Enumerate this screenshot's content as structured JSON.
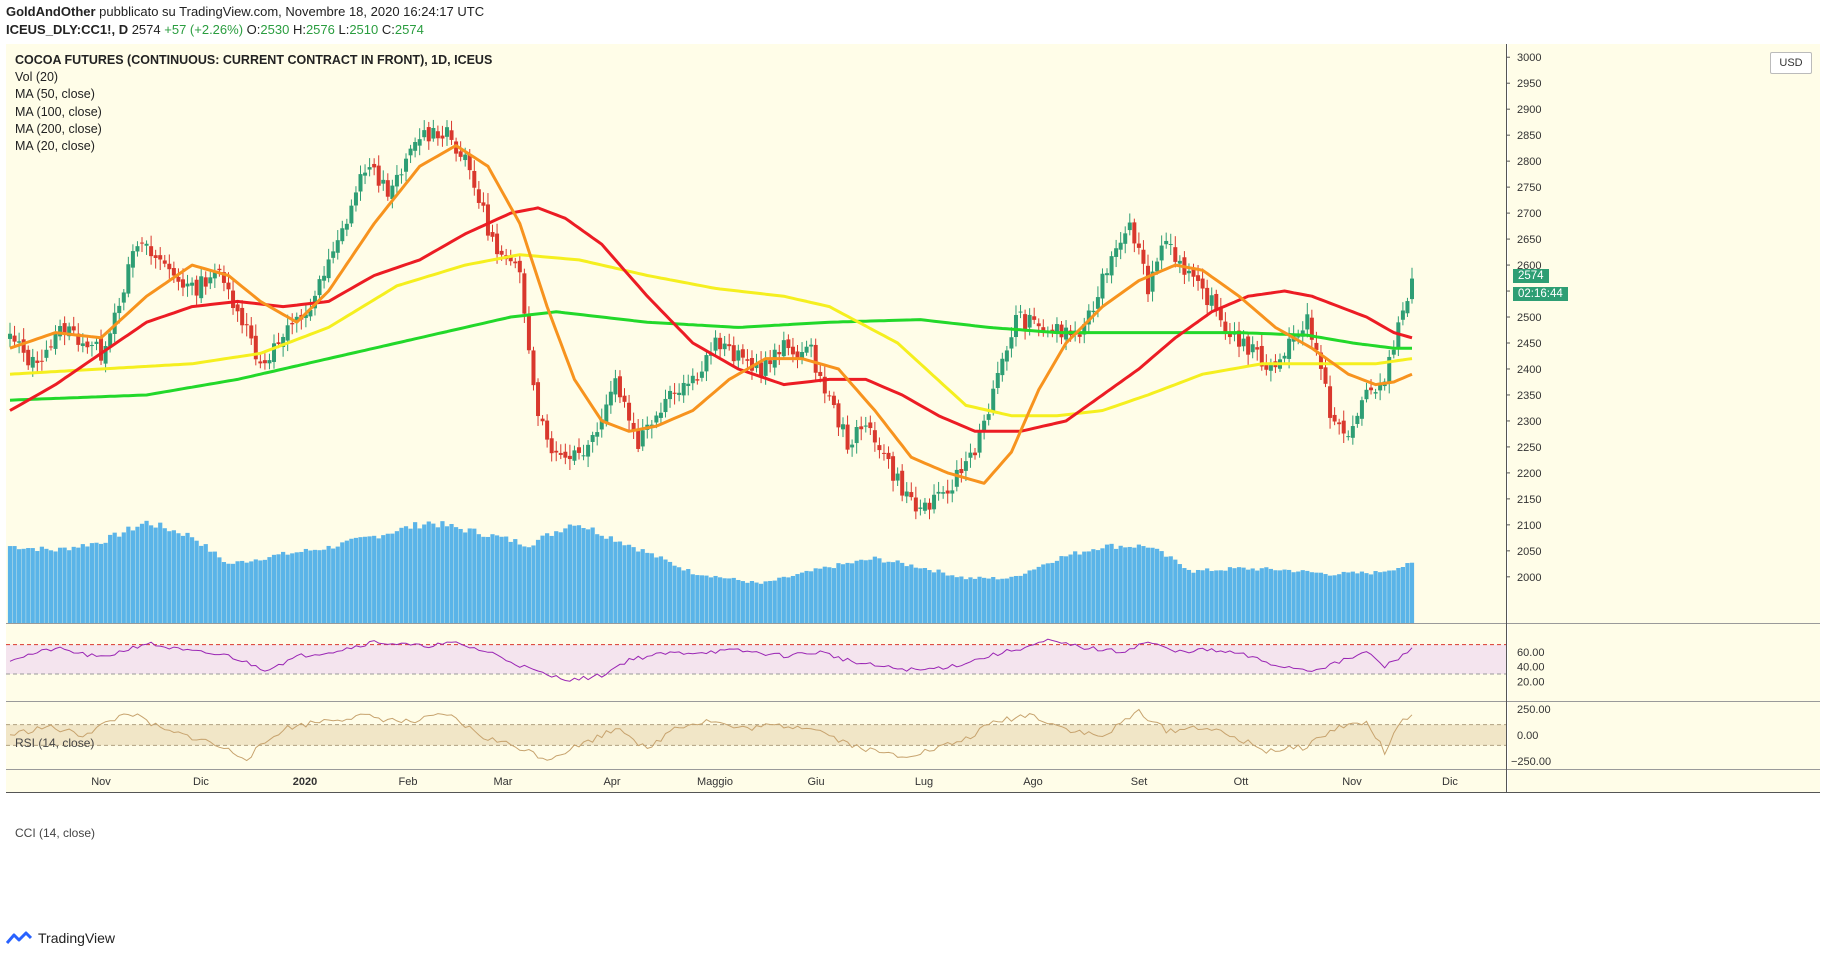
{
  "header": {
    "author": "GoldAndOther",
    "published_text": "pubblicato su TradingView.com, Novembre 18, 2020 16:24:17 UTC",
    "symbol": "ICEUS_DLY:CC1!, D",
    "last": "2574",
    "change": "+57 (+2.26%)",
    "open_label": "O:",
    "open": "2530",
    "high_label": "H:",
    "high": "2576",
    "low_label": "L:",
    "low": "2510",
    "close_label": "C:",
    "close": "2574"
  },
  "legend": {
    "title": "COCOA FUTURES (CONTINUOUS: CURRENT CONTRACT IN FRONT), 1D, ICEUS",
    "items": [
      "Vol (20)",
      "MA (50, close)",
      "MA (100, close)",
      "MA (200, close)",
      "MA (20, close)"
    ]
  },
  "rsi_label": "RSI (14, close)",
  "cci_label": "CCI (14, close)",
  "currency": "USD",
  "price_badge": "2574",
  "timer_badge": "02:16:44",
  "footer_brand": "TradingView",
  "colors": {
    "background": "#fffde8",
    "up": "#2e9e74",
    "down": "#d9382d",
    "volume": "#5ab4e8",
    "ma50": "#ec1c24",
    "ma100": "#f5ef1f",
    "ma200": "#22d82a",
    "ma20": "#f7931e",
    "rsi": "#9a25b4",
    "rsi_band": "#f4e4ee",
    "cci": "#c7a36e",
    "cci_band": "#f1e6c7"
  },
  "chart_data": {
    "type": "candlestick",
    "y_ticks": [
      2000,
      2050,
      2100,
      2150,
      2200,
      2250,
      2300,
      2350,
      2400,
      2450,
      2500,
      2550,
      2600,
      2650,
      2700,
      2750,
      2800,
      2850,
      2900,
      2950,
      3000
    ],
    "ylim": [
      1950,
      3070
    ],
    "x_labels": [
      "Nov",
      "Dic",
      "2020",
      "Feb",
      "Mar",
      "Apr",
      "Maggio",
      "Giu",
      "Lug",
      "Ago",
      "Set",
      "Ott",
      "Nov",
      "Dic"
    ],
    "close_anchors": [
      [
        0,
        2460
      ],
      [
        5,
        2410
      ],
      [
        12,
        2480
      ],
      [
        20,
        2430
      ],
      [
        28,
        2640
      ],
      [
        34,
        2600
      ],
      [
        40,
        2550
      ],
      [
        45,
        2590
      ],
      [
        50,
        2520
      ],
      [
        55,
        2410
      ],
      [
        60,
        2460
      ],
      [
        66,
        2520
      ],
      [
        72,
        2640
      ],
      [
        78,
        2790
      ],
      [
        84,
        2740
      ],
      [
        90,
        2850
      ],
      [
        96,
        2860
      ],
      [
        101,
        2780
      ],
      [
        107,
        2620
      ],
      [
        112,
        2580
      ],
      [
        116,
        2320
      ],
      [
        120,
        2230
      ],
      [
        127,
        2250
      ],
      [
        133,
        2380
      ],
      [
        138,
        2260
      ],
      [
        145,
        2360
      ],
      [
        150,
        2380
      ],
      [
        155,
        2450
      ],
      [
        160,
        2420
      ],
      [
        165,
        2400
      ],
      [
        170,
        2440
      ],
      [
        176,
        2430
      ],
      [
        180,
        2340
      ],
      [
        184,
        2260
      ],
      [
        189,
        2290
      ],
      [
        194,
        2200
      ],
      [
        199,
        2130
      ],
      [
        205,
        2150
      ],
      [
        212,
        2250
      ],
      [
        217,
        2380
      ],
      [
        221,
        2500
      ],
      [
        226,
        2480
      ],
      [
        231,
        2470
      ],
      [
        236,
        2470
      ],
      [
        241,
        2600
      ],
      [
        246,
        2690
      ],
      [
        250,
        2560
      ],
      [
        254,
        2660
      ],
      [
        258,
        2580
      ],
      [
        263,
        2540
      ],
      [
        267,
        2480
      ],
      [
        272,
        2440
      ],
      [
        277,
        2400
      ],
      [
        281,
        2450
      ],
      [
        285,
        2500
      ],
      [
        290,
        2320
      ],
      [
        294,
        2260
      ],
      [
        298,
        2360
      ],
      [
        302,
        2370
      ],
      [
        306,
        2520
      ],
      [
        308,
        2574
      ]
    ],
    "ma20_anchors": [
      [
        0,
        2440
      ],
      [
        10,
        2470
      ],
      [
        20,
        2460
      ],
      [
        30,
        2540
      ],
      [
        40,
        2600
      ],
      [
        48,
        2580
      ],
      [
        55,
        2530
      ],
      [
        63,
        2490
      ],
      [
        70,
        2550
      ],
      [
        80,
        2680
      ],
      [
        90,
        2790
      ],
      [
        98,
        2830
      ],
      [
        105,
        2790
      ],
      [
        112,
        2680
      ],
      [
        118,
        2520
      ],
      [
        124,
        2380
      ],
      [
        130,
        2300
      ],
      [
        136,
        2280
      ],
      [
        142,
        2290
      ],
      [
        150,
        2320
      ],
      [
        158,
        2380
      ],
      [
        166,
        2420
      ],
      [
        174,
        2420
      ],
      [
        182,
        2400
      ],
      [
        190,
        2320
      ],
      [
        198,
        2230
      ],
      [
        206,
        2200
      ],
      [
        214,
        2180
      ],
      [
        220,
        2240
      ],
      [
        226,
        2360
      ],
      [
        232,
        2450
      ],
      [
        240,
        2520
      ],
      [
        248,
        2570
      ],
      [
        256,
        2600
      ],
      [
        262,
        2590
      ],
      [
        270,
        2540
      ],
      [
        278,
        2480
      ],
      [
        286,
        2440
      ],
      [
        294,
        2390
      ],
      [
        300,
        2370
      ],
      [
        304,
        2375
      ],
      [
        308,
        2390
      ]
    ],
    "ma50_anchors": [
      [
        0,
        2320
      ],
      [
        10,
        2370
      ],
      [
        20,
        2430
      ],
      [
        30,
        2490
      ],
      [
        40,
        2520
      ],
      [
        50,
        2530
      ],
      [
        60,
        2520
      ],
      [
        70,
        2530
      ],
      [
        80,
        2580
      ],
      [
        90,
        2610
      ],
      [
        100,
        2660
      ],
      [
        110,
        2700
      ],
      [
        116,
        2710
      ],
      [
        122,
        2690
      ],
      [
        130,
        2640
      ],
      [
        140,
        2540
      ],
      [
        150,
        2450
      ],
      [
        160,
        2400
      ],
      [
        170,
        2370
      ],
      [
        180,
        2380
      ],
      [
        188,
        2380
      ],
      [
        196,
        2350
      ],
      [
        204,
        2310
      ],
      [
        212,
        2280
      ],
      [
        222,
        2280
      ],
      [
        232,
        2300
      ],
      [
        240,
        2350
      ],
      [
        248,
        2400
      ],
      [
        256,
        2460
      ],
      [
        264,
        2510
      ],
      [
        272,
        2540
      ],
      [
        280,
        2550
      ],
      [
        286,
        2540
      ],
      [
        292,
        2520
      ],
      [
        298,
        2500
      ],
      [
        304,
        2470
      ],
      [
        308,
        2460
      ]
    ],
    "ma100_anchors": [
      [
        0,
        2390
      ],
      [
        20,
        2400
      ],
      [
        40,
        2410
      ],
      [
        55,
        2430
      ],
      [
        70,
        2480
      ],
      [
        85,
        2560
      ],
      [
        100,
        2600
      ],
      [
        112,
        2620
      ],
      [
        125,
        2610
      ],
      [
        140,
        2580
      ],
      [
        155,
        2555
      ],
      [
        170,
        2540
      ],
      [
        180,
        2520
      ],
      [
        195,
        2450
      ],
      [
        210,
        2330
      ],
      [
        220,
        2310
      ],
      [
        230,
        2310
      ],
      [
        240,
        2320
      ],
      [
        250,
        2350
      ],
      [
        262,
        2390
      ],
      [
        275,
        2410
      ],
      [
        290,
        2410
      ],
      [
        300,
        2410
      ],
      [
        308,
        2420
      ]
    ],
    "ma200_anchors": [
      [
        0,
        2340
      ],
      [
        30,
        2350
      ],
      [
        50,
        2380
      ],
      [
        70,
        2420
      ],
      [
        90,
        2460
      ],
      [
        110,
        2500
      ],
      [
        120,
        2510
      ],
      [
        140,
        2490
      ],
      [
        160,
        2480
      ],
      [
        180,
        2490
      ],
      [
        200,
        2495
      ],
      [
        215,
        2480
      ],
      [
        230,
        2470
      ],
      [
        250,
        2470
      ],
      [
        270,
        2470
      ],
      [
        285,
        2465
      ],
      [
        295,
        2450
      ],
      [
        304,
        2440
      ],
      [
        308,
        2440
      ]
    ],
    "rsi": {
      "y_ticks": [
        20,
        40,
        60
      ],
      "overbought": 70,
      "oversold": 30,
      "anchors": [
        [
          0,
          50
        ],
        [
          10,
          65
        ],
        [
          20,
          52
        ],
        [
          30,
          72
        ],
        [
          38,
          62
        ],
        [
          48,
          55
        ],
        [
          56,
          36
        ],
        [
          64,
          55
        ],
        [
          72,
          62
        ],
        [
          80,
          74
        ],
        [
          90,
          68
        ],
        [
          98,
          72
        ],
        [
          106,
          58
        ],
        [
          112,
          42
        ],
        [
          118,
          28
        ],
        [
          124,
          22
        ],
        [
          130,
          28
        ],
        [
          136,
          50
        ],
        [
          144,
          58
        ],
        [
          152,
          60
        ],
        [
          160,
          62
        ],
        [
          170,
          55
        ],
        [
          178,
          60
        ],
        [
          186,
          45
        ],
        [
          194,
          38
        ],
        [
          200,
          35
        ],
        [
          208,
          42
        ],
        [
          216,
          56
        ],
        [
          224,
          68
        ],
        [
          228,
          75
        ],
        [
          236,
          66
        ],
        [
          244,
          60
        ],
        [
          250,
          74
        ],
        [
          256,
          60
        ],
        [
          262,
          63
        ],
        [
          270,
          58
        ],
        [
          278,
          42
        ],
        [
          286,
          35
        ],
        [
          292,
          46
        ],
        [
          298,
          60
        ],
        [
          302,
          40
        ],
        [
          306,
          55
        ],
        [
          308,
          68
        ]
      ]
    },
    "cci": {
      "y_ticks": [
        250,
        0,
        -250
      ],
      "upper": 100,
      "lower": -100,
      "anchors": [
        [
          0,
          0
        ],
        [
          8,
          80
        ],
        [
          16,
          0
        ],
        [
          26,
          220
        ],
        [
          34,
          40
        ],
        [
          42,
          -40
        ],
        [
          52,
          -220
        ],
        [
          60,
          60
        ],
        [
          70,
          150
        ],
        [
          78,
          180
        ],
        [
          88,
          120
        ],
        [
          96,
          200
        ],
        [
          104,
          -20
        ],
        [
          112,
          -120
        ],
        [
          118,
          -230
        ],
        [
          126,
          -80
        ],
        [
          134,
          80
        ],
        [
          140,
          -150
        ],
        [
          146,
          80
        ],
        [
          154,
          140
        ],
        [
          160,
          60
        ],
        [
          168,
          90
        ],
        [
          176,
          80
        ],
        [
          184,
          -80
        ],
        [
          190,
          -160
        ],
        [
          196,
          -200
        ],
        [
          202,
          -150
        ],
        [
          210,
          -40
        ],
        [
          216,
          120
        ],
        [
          224,
          200
        ],
        [
          232,
          60
        ],
        [
          240,
          -20
        ],
        [
          248,
          230
        ],
        [
          254,
          40
        ],
        [
          262,
          80
        ],
        [
          270,
          -40
        ],
        [
          276,
          -150
        ],
        [
          284,
          -120
        ],
        [
          292,
          80
        ],
        [
          298,
          120
        ],
        [
          302,
          -160
        ],
        [
          306,
          140
        ],
        [
          308,
          200
        ]
      ]
    },
    "volume": {
      "anchors": [
        [
          0,
          0.55
        ],
        [
          10,
          0.52
        ],
        [
          20,
          0.58
        ],
        [
          30,
          0.72
        ],
        [
          40,
          0.62
        ],
        [
          48,
          0.42
        ],
        [
          58,
          0.48
        ],
        [
          70,
          0.54
        ],
        [
          80,
          0.62
        ],
        [
          92,
          0.72
        ],
        [
          104,
          0.64
        ],
        [
          114,
          0.56
        ],
        [
          124,
          0.72
        ],
        [
          136,
          0.56
        ],
        [
          150,
          0.36
        ],
        [
          165,
          0.28
        ],
        [
          180,
          0.4
        ],
        [
          190,
          0.46
        ],
        [
          200,
          0.4
        ],
        [
          210,
          0.32
        ],
        [
          220,
          0.32
        ],
        [
          230,
          0.46
        ],
        [
          240,
          0.55
        ],
        [
          250,
          0.55
        ],
        [
          260,
          0.37
        ],
        [
          270,
          0.39
        ],
        [
          280,
          0.38
        ],
        [
          290,
          0.35
        ],
        [
          300,
          0.36
        ],
        [
          308,
          0.42
        ]
      ]
    }
  }
}
